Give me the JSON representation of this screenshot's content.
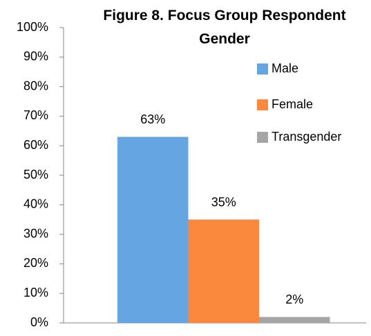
{
  "chart_data": {
    "type": "bar",
    "title": "Figure 8. Focus Group Respondent Gender",
    "categories": [
      null
    ],
    "series": [
      {
        "name": "Male",
        "color": "#65a5e1",
        "values": [
          63
        ],
        "value_labels": [
          "63%"
        ]
      },
      {
        "name": "Female",
        "color": "#fb893d",
        "values": [
          35
        ],
        "value_labels": [
          "35%"
        ]
      },
      {
        "name": "Transgender",
        "color": "#a5a5a5",
        "values": [
          2
        ],
        "value_labels": [
          "2%"
        ]
      }
    ],
    "ylim": [
      0,
      100
    ],
    "yticks": [
      {
        "value": 0,
        "label": "0%"
      },
      {
        "value": 10,
        "label": "10%"
      },
      {
        "value": 20,
        "label": "20%"
      },
      {
        "value": 30,
        "label": "30%"
      },
      {
        "value": 40,
        "label": "40%"
      },
      {
        "value": 50,
        "label": "50%"
      },
      {
        "value": 60,
        "label": "60%"
      },
      {
        "value": 70,
        "label": "70%"
      },
      {
        "value": 80,
        "label": "80%"
      },
      {
        "value": 90,
        "label": "90%"
      },
      {
        "value": 100,
        "label": "100%"
      }
    ],
    "grid": false,
    "legend": "top-right"
  }
}
